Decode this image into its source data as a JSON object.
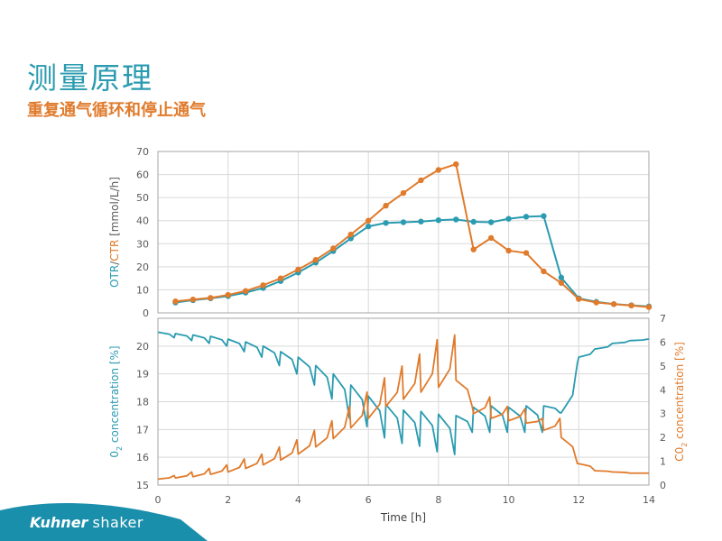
{
  "slide": {
    "title": "测量原理",
    "subtitle": "重复通气循环和停止通气",
    "logo_brand": "Kuhner",
    "logo_product": "shaker"
  },
  "colors": {
    "otr": "#2a9bb0",
    "ctr": "#e07b2c",
    "title": "#2a9bb0",
    "subtitle": "#e07b2c",
    "logo_band": "#1a8fab"
  },
  "chart_data": [
    {
      "type": "line",
      "ylabel": {
        "parts": [
          "OTR",
          "/",
          "CTR",
          "  [mmol/L/h]"
        ]
      },
      "ylim": [
        0,
        70
      ],
      "yticks": [
        0,
        10,
        20,
        30,
        40,
        50,
        60,
        70
      ],
      "xlim": [
        0,
        14
      ],
      "grid": true,
      "series": [
        {
          "name": "OTR",
          "color": "#2a9bb0",
          "x": [
            0.5,
            1.0,
            1.5,
            2.0,
            2.5,
            3.0,
            3.5,
            4.0,
            4.5,
            5.0,
            5.5,
            6.0,
            6.5,
            7.0,
            7.5,
            8.0,
            8.5,
            9.0,
            9.5,
            10.0,
            10.5,
            11.0,
            11.5,
            12.0,
            12.5,
            13.0,
            13.5,
            14.0
          ],
          "y": [
            4.5,
            5.5,
            6.3,
            7.3,
            8.8,
            10.8,
            13.8,
            17.5,
            21.8,
            26.8,
            32.3,
            37.5,
            39.0,
            39.3,
            39.6,
            40.2,
            40.5,
            39.5,
            39.3,
            40.8,
            41.7,
            42.0,
            15.3,
            6.3,
            4.8,
            3.8,
            3.3,
            2.8
          ]
        },
        {
          "name": "CTR",
          "color": "#e07b2c",
          "x": [
            0.5,
            1.0,
            1.5,
            2.0,
            2.5,
            3.0,
            3.5,
            4.0,
            4.5,
            5.0,
            5.5,
            6.0,
            6.5,
            7.0,
            7.5,
            8.0,
            8.5,
            9.0,
            9.5,
            10.0,
            10.5,
            11.0,
            11.5,
            12.0,
            12.5,
            13.0,
            13.5,
            14.0
          ],
          "y": [
            5.0,
            5.8,
            6.5,
            7.8,
            9.5,
            12.0,
            15.0,
            18.8,
            23.0,
            28.0,
            34.0,
            40.0,
            46.5,
            52.0,
            57.5,
            62.0,
            64.5,
            27.5,
            32.5,
            27.0,
            26.0,
            18.0,
            13.0,
            6.0,
            4.5,
            3.8,
            3.2,
            2.5
          ]
        }
      ]
    },
    {
      "type": "line",
      "ylabel_left": {
        "parts": [
          "0",
          "2",
          " concentration  [%]"
        ]
      },
      "ylabel_right": {
        "parts": [
          "C0",
          "2",
          " concentration  [%]"
        ]
      },
      "xlabel": "Time   [h]",
      "xlim": [
        0,
        14
      ],
      "xticks": [
        0,
        2,
        4,
        6,
        8,
        10,
        12,
        14
      ],
      "ylim_left": [
        15,
        21
      ],
      "yticks_left": [
        15,
        16,
        17,
        18,
        19,
        20
      ],
      "ylim_right": [
        0,
        7
      ],
      "yticks_right": [
        0,
        1,
        2,
        3,
        4,
        5,
        6,
        7
      ],
      "grid": true,
      "series": [
        {
          "name": "O2",
          "axis": "left",
          "color": "#2a9bb0",
          "x": [
            0.0,
            0.5,
            1.0,
            1.5,
            2.0,
            2.5,
            3.0,
            3.5,
            4.0,
            4.5,
            5.0,
            5.5,
            6.0,
            6.5,
            7.0,
            7.5,
            8.0,
            8.5,
            9.0,
            9.5,
            10.0,
            10.5,
            11.0,
            11.5,
            12.0,
            12.5,
            13.0,
            13.5,
            14.0
          ],
          "y": [
            20.5,
            20.45,
            20.4,
            20.35,
            20.25,
            20.15,
            20.0,
            19.8,
            19.6,
            19.3,
            19.0,
            18.6,
            18.2,
            17.9,
            17.7,
            17.65,
            17.55,
            17.5,
            17.8,
            17.85,
            17.8,
            17.85,
            17.85,
            17.6,
            19.6,
            19.9,
            20.1,
            20.2,
            20.25
          ],
          "dip": [
            20.5,
            20.3,
            20.2,
            20.1,
            20.0,
            19.8,
            19.6,
            19.3,
            19.0,
            18.6,
            18.1,
            17.4,
            17.1,
            16.7,
            16.5,
            16.4,
            16.2,
            16.1,
            16.9,
            16.9,
            16.9,
            16.9,
            16.9,
            17.6,
            19.4,
            19.9,
            20.1,
            20.2,
            20.25
          ]
        },
        {
          "name": "CO2",
          "axis": "right",
          "color": "#e07b2c",
          "x": [
            0.0,
            0.5,
            1.0,
            1.5,
            2.0,
            2.5,
            3.0,
            3.5,
            4.0,
            4.5,
            5.0,
            5.5,
            6.0,
            6.5,
            7.0,
            7.5,
            8.0,
            8.5,
            9.0,
            9.5,
            10.0,
            10.5,
            11.0,
            11.5,
            12.0,
            12.5,
            13.0,
            13.5,
            14.0
          ],
          "y": [
            0.25,
            0.3,
            0.35,
            0.45,
            0.55,
            0.7,
            0.85,
            1.05,
            1.3,
            1.6,
            1.95,
            2.4,
            2.8,
            3.3,
            3.6,
            3.9,
            4.1,
            4.4,
            3.0,
            2.8,
            2.7,
            2.6,
            2.3,
            2.0,
            0.9,
            0.6,
            0.55,
            0.5,
            0.5
          ],
          "peak": [
            0.25,
            0.4,
            0.55,
            0.7,
            0.85,
            1.1,
            1.3,
            1.6,
            1.9,
            2.3,
            2.7,
            3.3,
            3.9,
            4.5,
            5.0,
            5.5,
            6.1,
            6.3,
            3.3,
            3.7,
            3.3,
            3.2,
            2.8,
            2.8,
            0.9,
            0.6,
            0.55,
            0.5,
            0.5
          ]
        }
      ]
    }
  ]
}
